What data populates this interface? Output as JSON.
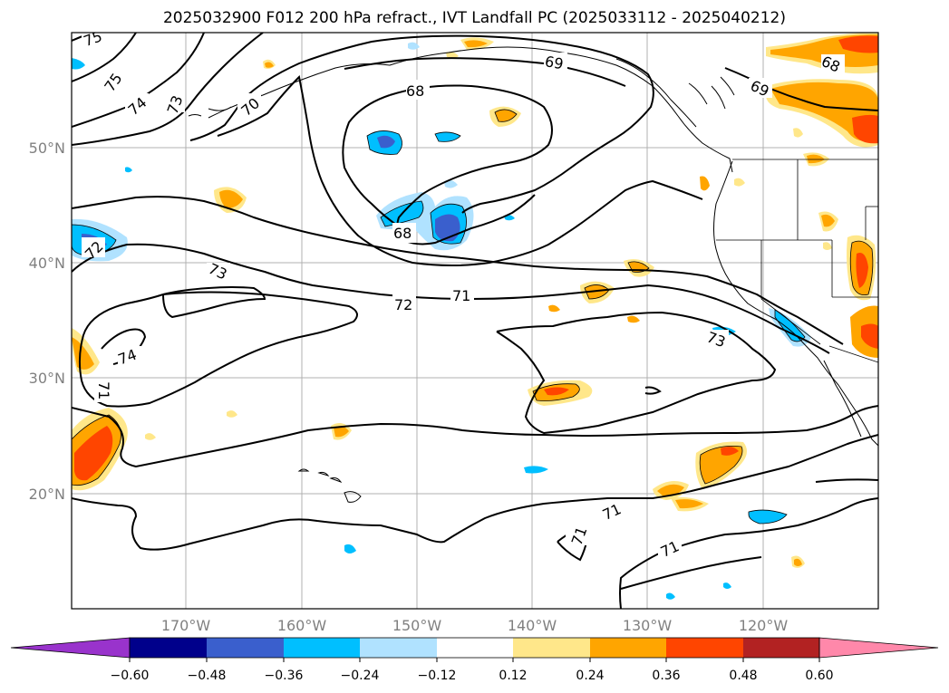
{
  "title": "2025032900 F012 200 hPa refract., IVT Landfall PC (2025033112 - 2025040212)",
  "lat_labels": [
    "50°N",
    "40°N",
    "30°N",
    "20°N"
  ],
  "lon_labels": [
    "170°W",
    "160°W",
    "150°W",
    "140°W",
    "130°W",
    "120°W"
  ],
  "contour_labels": [
    "75",
    "75",
    "74",
    "73",
    "70",
    "68",
    "69",
    "69",
    "68",
    "68",
    "72",
    "73",
    "71",
    "72",
    "74",
    "71",
    "73",
    "71",
    "71",
    "71"
  ],
  "colorbar": {
    "ticks": [
      "−0.60",
      "−0.48",
      "−0.36",
      "−0.24",
      "−0.12",
      "0.12",
      "0.24",
      "0.36",
      "0.48",
      "0.60"
    ],
    "colors": [
      "#9933cc",
      "#00008b",
      "#3a5fcd",
      "#00bfff",
      "#b0e2ff",
      "#ffffff",
      "#ffe78a",
      "#ffa500",
      "#ff4500",
      "#b22222",
      "#ff88aa"
    ]
  }
}
